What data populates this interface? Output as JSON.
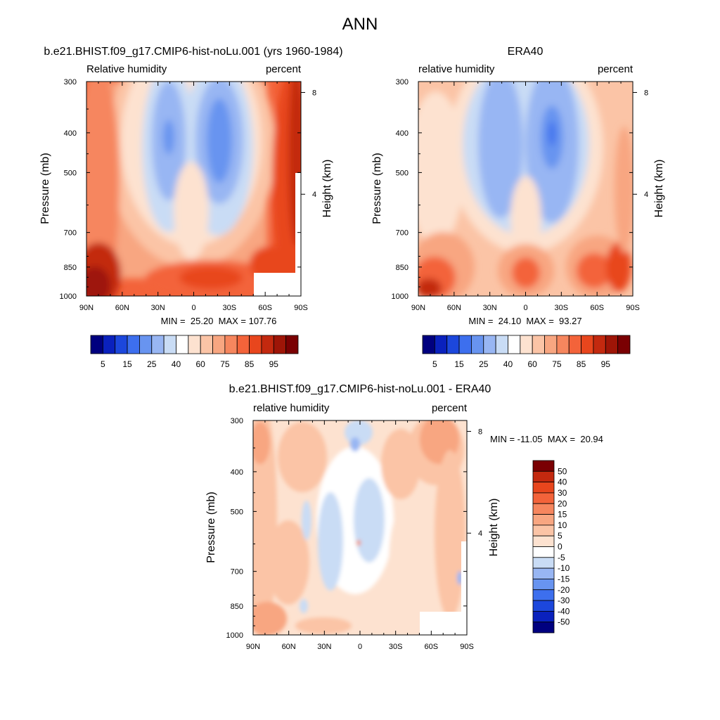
{
  "page": {
    "title": "ANN"
  },
  "colors": {
    "abs_palette": [
      "#00007f",
      "#0a21bd",
      "#1c47dc",
      "#3d6fee",
      "#6894f0",
      "#98b6f3",
      "#c9dcf5",
      "#ffffff",
      "#fde2d0",
      "#fbc4a6",
      "#f8a681",
      "#f6865e",
      "#f3633a",
      "#e8461d",
      "#c3290f",
      "#9e1507",
      "#7a0002"
    ],
    "diff_palette": [
      "#00007f",
      "#0a21bd",
      "#1c47dc",
      "#3d6fee",
      "#6894f0",
      "#98b6f3",
      "#c9dcf5",
      "#ffffff",
      "#fde2d0",
      "#fbc4a6",
      "#f8a681",
      "#f6865e",
      "#f3633a",
      "#e8461d",
      "#c3290f",
      "#7a0002"
    ],
    "missing": "#ffffff",
    "frame": "#000000"
  },
  "chart_data": [
    {
      "type": "heatmap",
      "title": "b.e21.BHIST.f09_g17.CMIP6-hist-noLu.001 (yrs 1960-1984)",
      "left_string": "Relative humidity",
      "right_string": "percent",
      "xlabel": "",
      "ylabel": "Pressure (mb)",
      "ylabel_right": "Height (km)",
      "x_ticks": [
        "90N",
        "60N",
        "30N",
        "0",
        "30S",
        "60S",
        "90S"
      ],
      "y_ticks": [
        "300",
        "400",
        "500",
        "700",
        "850",
        "1000"
      ],
      "y_ticks_right": [
        "8",
        "4"
      ],
      "stats": "MIN =  25.20  MAX = 107.76",
      "min": 25.2,
      "max": 107.76,
      "colorbar": {
        "orientation": "horizontal",
        "levels": [
          5,
          10,
          15,
          20,
          25,
          30,
          35,
          40,
          50,
          60,
          70,
          75,
          80,
          85,
          90,
          95
        ],
        "labels": [
          "5",
          "15",
          "25",
          "40",
          "60",
          "75",
          "85",
          "95"
        ]
      }
    },
    {
      "type": "heatmap",
      "title": "ERA40",
      "left_string": "relative humidity",
      "right_string": "percent",
      "xlabel": "",
      "ylabel": "Pressure (mb)",
      "ylabel_right": "Height (km)",
      "x_ticks": [
        "90N",
        "60N",
        "30N",
        "0",
        "30S",
        "60S",
        "90S"
      ],
      "y_ticks": [
        "300",
        "400",
        "500",
        "700",
        "850",
        "1000"
      ],
      "y_ticks_right": [
        "8",
        "4"
      ],
      "stats": "MIN =  24.10  MAX =  93.27",
      "min": 24.1,
      "max": 93.27,
      "colorbar": {
        "orientation": "horizontal",
        "levels": [
          5,
          10,
          15,
          20,
          25,
          30,
          35,
          40,
          50,
          60,
          70,
          75,
          80,
          85,
          90,
          95
        ],
        "labels": [
          "5",
          "15",
          "25",
          "40",
          "60",
          "75",
          "85",
          "95"
        ]
      }
    },
    {
      "type": "heatmap",
      "title": "b.e21.BHIST.f09_g17.CMIP6-hist-noLu.001 - ERA40",
      "left_string": "relative humidity",
      "right_string": "percent",
      "xlabel": "",
      "ylabel": "Pressure (mb)",
      "ylabel_right": "Height (km)",
      "x_ticks": [
        "90N",
        "60N",
        "30N",
        "0",
        "30S",
        "60S",
        "90S"
      ],
      "y_ticks": [
        "300",
        "400",
        "500",
        "700",
        "850",
        "1000"
      ],
      "y_ticks_right": [
        "8",
        "4"
      ],
      "stats": "MIN = -11.05  MAX =  20.94",
      "min": -11.05,
      "max": 20.94,
      "colorbar": {
        "orientation": "vertical",
        "levels": [
          -50,
          -40,
          -30,
          -20,
          -15,
          -10,
          -5,
          0,
          5,
          10,
          15,
          20,
          30,
          40,
          50
        ],
        "labels": [
          "50",
          "40",
          "30",
          "20",
          "15",
          "10",
          "5",
          "0",
          "-5",
          "-10",
          "-15",
          "-20",
          "-30",
          "-40",
          "-50"
        ]
      }
    }
  ]
}
